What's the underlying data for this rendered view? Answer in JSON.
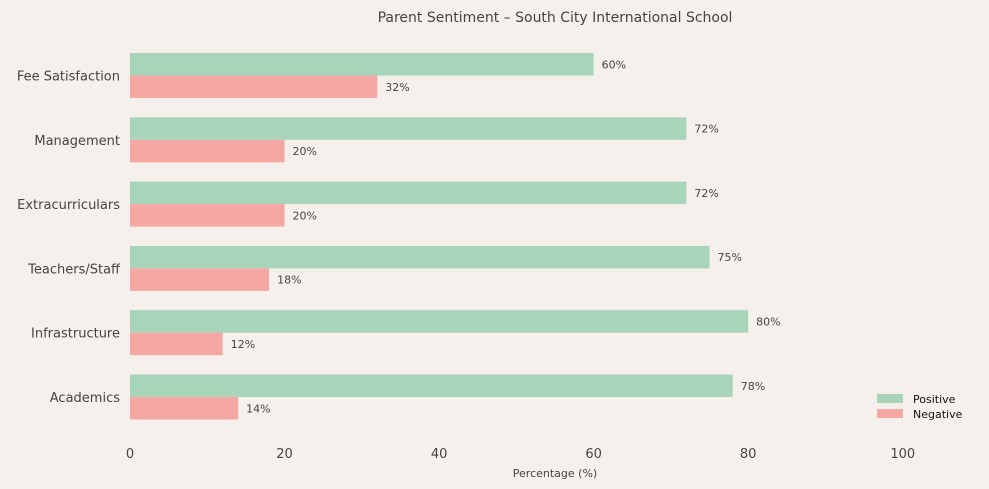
{
  "chart_data": {
    "type": "bar",
    "orientation": "horizontal",
    "title": "Parent Sentiment – South City International School",
    "xlabel": "Percentage (%)",
    "ylabel": "",
    "xlim": [
      0,
      110
    ],
    "xticks": [
      "0",
      "20",
      "40",
      "60",
      "80",
      "100"
    ],
    "categories": [
      "Academics",
      "Infrastructure",
      "Teachers/Staff",
      "Extracurriculars",
      "Management",
      "Fee Satisfaction"
    ],
    "series": [
      {
        "name": "Positive",
        "color": "#a8d5ba",
        "values": [
          78,
          80,
          75,
          72,
          72,
          60
        ],
        "labels": [
          "78%",
          "80%",
          "75%",
          "72%",
          "72%",
          "60%"
        ]
      },
      {
        "name": "Negative",
        "color": "#f4a7a3",
        "values": [
          14,
          12,
          18,
          20,
          20,
          32
        ],
        "labels": [
          "14%",
          "12%",
          "18%",
          "20%",
          "20%",
          "32%"
        ]
      }
    ],
    "grid": false,
    "legend": "bottom-right"
  }
}
